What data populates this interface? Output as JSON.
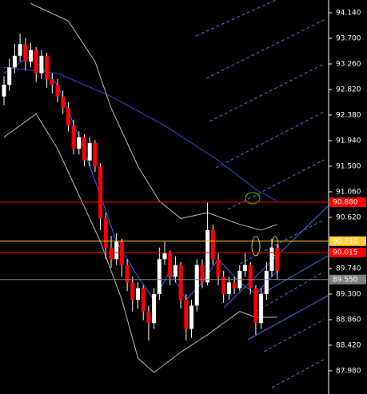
{
  "chart_data": {
    "type": "candlestick",
    "ylim": [
      87.58,
      94.36
    ],
    "yticks": [
      {
        "value": 94.14,
        "label": "94.140"
      },
      {
        "value": 93.7,
        "label": "93.700"
      },
      {
        "value": 93.26,
        "label": "93.260"
      },
      {
        "value": 92.82,
        "label": "92.820"
      },
      {
        "value": 92.38,
        "label": "92.380"
      },
      {
        "value": 91.94,
        "label": "91.940"
      },
      {
        "value": 91.5,
        "label": "91.500"
      },
      {
        "value": 91.06,
        "label": "91.060"
      },
      {
        "value": 90.62,
        "label": "90.620"
      },
      {
        "value": 89.74,
        "label": "89.740"
      },
      {
        "value": 89.3,
        "label": "89.300"
      },
      {
        "value": 88.86,
        "label": "88.860"
      },
      {
        "value": 88.42,
        "label": "88.420"
      },
      {
        "value": 87.98,
        "label": "87.980"
      }
    ],
    "up_color": "#ffffff",
    "down_color": "#ff0000",
    "wick_color": "#ffffff",
    "open": [
      92.7,
      92.9,
      93.2,
      93.4,
      93.6,
      93.3,
      93.5,
      93.1,
      93.4,
      93.0,
      92.9,
      92.7,
      92.5,
      92.2,
      91.8,
      92.0,
      91.6,
      91.9,
      91.5,
      90.6,
      90.1,
      89.9,
      90.2,
      89.8,
      89.5,
      89.2,
      89.4,
      89.0,
      88.8,
      89.3,
      89.9,
      90.0,
      89.6,
      89.8,
      89.2,
      88.7,
      89.1,
      89.8,
      89.5,
      90.4,
      89.9,
      89.6,
      89.3,
      89.5,
      89.4,
      89.7,
      89.8,
      89.4,
      88.8,
      89.3,
      89.7,
      90.1
    ],
    "high": [
      93.05,
      93.35,
      93.6,
      93.78,
      93.7,
      93.62,
      93.55,
      93.5,
      93.45,
      93.1,
      93.0,
      92.8,
      92.6,
      92.3,
      92.1,
      92.05,
      92.0,
      91.95,
      91.55,
      90.7,
      90.3,
      90.35,
      90.25,
      89.9,
      89.6,
      89.5,
      89.45,
      89.1,
      89.4,
      90.1,
      90.2,
      90.05,
      89.95,
      89.85,
      89.3,
      89.2,
      89.9,
      89.9,
      90.88,
      90.5,
      90.0,
      89.7,
      89.6,
      89.6,
      89.8,
      90.0,
      89.85,
      89.45,
      89.4,
      89.85,
      90.25,
      90.15
    ],
    "low": [
      92.55,
      92.8,
      93.1,
      93.3,
      93.15,
      93.2,
      92.95,
      93.0,
      92.85,
      92.75,
      92.6,
      92.4,
      92.1,
      91.7,
      91.7,
      91.5,
      91.5,
      91.4,
      90.4,
      89.9,
      89.75,
      89.8,
      89.6,
      89.35,
      89.0,
      89.05,
      88.85,
      88.5,
      88.7,
      89.2,
      89.8,
      89.45,
      89.5,
      89.05,
      88.5,
      88.55,
      89.0,
      89.4,
      89.45,
      89.8,
      89.45,
      89.15,
      89.2,
      89.3,
      89.35,
      89.6,
      89.3,
      88.6,
      88.7,
      89.2,
      89.6,
      89.55
    ],
    "close": [
      92.9,
      93.2,
      93.4,
      93.6,
      93.3,
      93.5,
      93.1,
      93.4,
      93.0,
      92.9,
      92.7,
      92.5,
      92.2,
      91.8,
      92.0,
      91.6,
      91.9,
      91.5,
      90.6,
      90.1,
      89.9,
      90.2,
      89.8,
      89.5,
      89.2,
      89.4,
      89.0,
      88.8,
      89.3,
      89.9,
      90.0,
      89.6,
      89.8,
      89.2,
      88.7,
      89.1,
      89.8,
      89.5,
      90.4,
      89.9,
      89.6,
      89.3,
      89.5,
      89.4,
      89.7,
      89.8,
      89.4,
      88.8,
      89.3,
      89.7,
      90.1,
      89.7
    ],
    "overlays": [
      {
        "color": "#3344cc",
        "x": [
          0,
          10,
          20,
          30,
          40,
          47,
          51
        ],
        "values": [
          93.2,
          93.1,
          92.7,
          92.2,
          91.6,
          91.1,
          90.9
        ]
      },
      {
        "color": "#3366ee",
        "x": [
          0,
          5,
          10,
          14,
          18,
          21,
          25,
          28,
          31,
          34,
          37,
          40,
          44,
          47,
          51
        ],
        "values": [
          93.1,
          93.4,
          92.9,
          92.0,
          91.0,
          90.2,
          89.6,
          89.2,
          89.7,
          89.2,
          89.5,
          89.9,
          89.5,
          89.3,
          89.7
        ]
      },
      {
        "color": "#bbbbbb",
        "x": [
          5,
          12,
          17,
          20,
          25,
          29,
          33,
          38,
          44,
          48,
          51
        ],
        "values": [
          94.3,
          94.0,
          93.3,
          92.5,
          91.5,
          90.9,
          90.6,
          90.7,
          90.5,
          90.4,
          90.5
        ]
      },
      {
        "color": "#bbbbbb",
        "x": [
          0,
          6,
          10,
          14,
          18,
          22,
          25,
          28,
          33,
          38,
          44,
          47,
          51
        ],
        "values": [
          92.0,
          92.4,
          91.8,
          91.0,
          90.2,
          89.2,
          88.2,
          87.95,
          88.3,
          88.6,
          89.0,
          88.9,
          88.9
        ]
      }
    ],
    "levels": [
      {
        "value": 90.88,
        "label": "90.880",
        "color": "#ff0000",
        "label_bg": "#ff0000",
        "label_color": "#ffffff"
      },
      {
        "value": 90.21,
        "label": "90.210",
        "color": "#ffcc33",
        "label_bg": "#ffcc33",
        "label_color": "#000000"
      },
      {
        "value": 90.015,
        "label": "90.015",
        "color": "#ff0000",
        "label_bg": "#ff0000",
        "label_color": "#ffffff"
      },
      {
        "value": 89.55,
        "label": "89.550",
        "color": "#808080",
        "label_bg": "#808080",
        "label_color": "#ffffff"
      }
    ]
  }
}
